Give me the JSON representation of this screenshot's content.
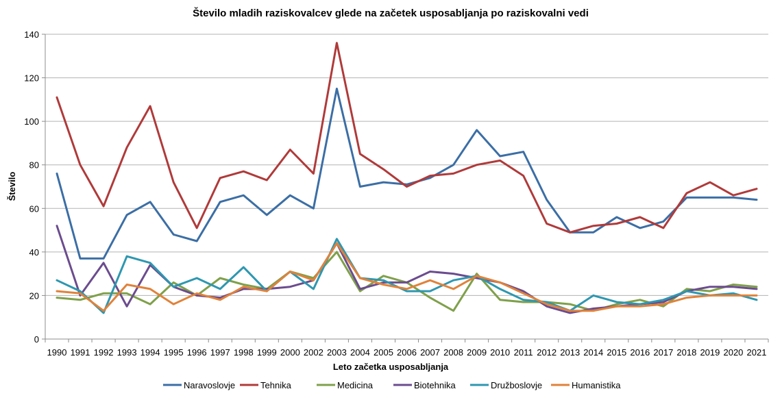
{
  "chart_data": {
    "type": "line",
    "title": "Število mladih raziskovalcev glede na začetek usposabljanja po raziskovalni vedi",
    "xlabel": "Leto začetka usposabljanja",
    "ylabel": "Število",
    "ylim": [
      0,
      140
    ],
    "yticks": [
      0,
      20,
      40,
      60,
      80,
      100,
      120,
      140
    ],
    "grid": true,
    "legend_position": "bottom",
    "categories": [
      "1990",
      "1991",
      "1992",
      "1993",
      "1994",
      "1995",
      "1996",
      "1997",
      "1998",
      "1999",
      "2000",
      "2002",
      "2003",
      "2004",
      "2005",
      "2006",
      "2007",
      "2008",
      "2009",
      "2010",
      "2011",
      "2012",
      "2013",
      "2014",
      "2015",
      "2016",
      "2017",
      "2018",
      "2019",
      "2020",
      "2021"
    ],
    "series": [
      {
        "name": "Naravoslovje",
        "color": "#3b6ea5",
        "values": [
          76,
          37,
          37,
          57,
          63,
          48,
          45,
          63,
          66,
          57,
          66,
          60,
          115,
          70,
          72,
          71,
          74,
          80,
          96,
          84,
          86,
          64,
          49,
          49,
          56,
          51,
          54,
          65,
          65,
          65,
          64
        ]
      },
      {
        "name": "Tehnika",
        "color": "#b03a3a",
        "values": [
          111,
          80,
          61,
          88,
          107,
          72,
          51,
          74,
          77,
          73,
          87,
          76,
          136,
          85,
          78,
          70,
          75,
          76,
          80,
          82,
          75,
          53,
          49,
          52,
          53,
          56,
          51,
          67,
          72,
          66,
          69
        ]
      },
      {
        "name": "Medicina",
        "color": "#7fa04a",
        "values": [
          19,
          18,
          21,
          21,
          16,
          26,
          20,
          28,
          25,
          23,
          31,
          28,
          40,
          22,
          29,
          26,
          19,
          13,
          30,
          18,
          17,
          17,
          16,
          13,
          16,
          18,
          15,
          23,
          22,
          25,
          24
        ]
      },
      {
        "name": "Biotehnika",
        "color": "#6b4c8e",
        "values": [
          52,
          20,
          35,
          15,
          34,
          24,
          20,
          19,
          23,
          23,
          24,
          27,
          44,
          23,
          26,
          26,
          31,
          30,
          28,
          26,
          22,
          15,
          12,
          14,
          15,
          16,
          17,
          22,
          24,
          24,
          23
        ]
      },
      {
        "name": "Družboslovje",
        "color": "#2e97b0",
        "values": [
          27,
          22,
          12,
          38,
          35,
          24,
          28,
          23,
          33,
          22,
          31,
          23,
          46,
          28,
          27,
          22,
          22,
          27,
          29,
          23,
          18,
          17,
          13,
          20,
          17,
          16,
          18,
          22,
          20,
          21,
          18
        ]
      },
      {
        "name": "Humanistika",
        "color": "#e0823a",
        "values": [
          22,
          21,
          13,
          25,
          23,
          16,
          21,
          18,
          24,
          22,
          31,
          27,
          44,
          28,
          25,
          23,
          27,
          23,
          29,
          26,
          21,
          16,
          13,
          13,
          15,
          15,
          16,
          19,
          20,
          20,
          20
        ]
      }
    ]
  }
}
